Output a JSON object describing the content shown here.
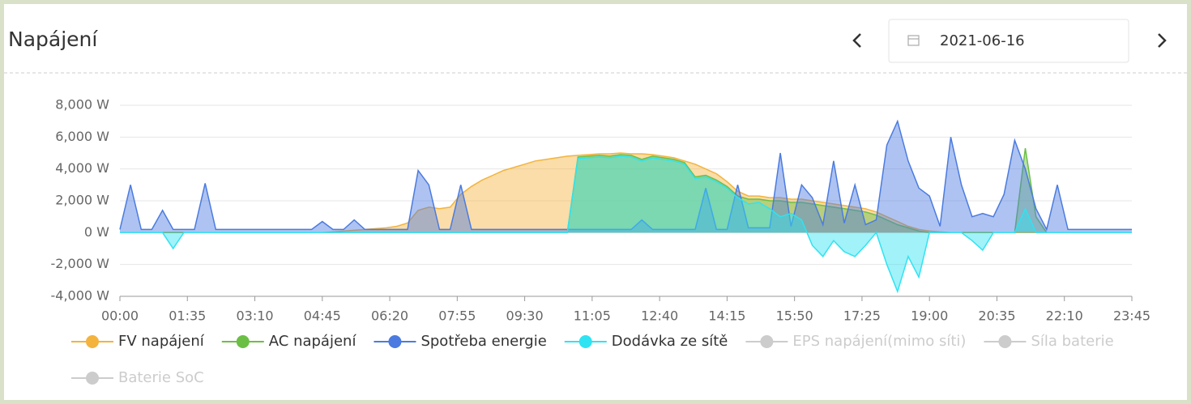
{
  "header": {
    "title": "Napájení",
    "date": "2021-06-16"
  },
  "chart_data": {
    "type": "area",
    "x": [
      0,
      15,
      30,
      45,
      60,
      75,
      90,
      105,
      120,
      135,
      150,
      165,
      180,
      195,
      210,
      225,
      240,
      255,
      270,
      285,
      300,
      315,
      330,
      345,
      360,
      375,
      390,
      405,
      420,
      435,
      450,
      465,
      480,
      495,
      510,
      525,
      540,
      555,
      570,
      585,
      600,
      615,
      630,
      645,
      660,
      675,
      690,
      705,
      720,
      735,
      750,
      765,
      780,
      795,
      810,
      825,
      840,
      855,
      870,
      885,
      900,
      915,
      930,
      945,
      960,
      975,
      990,
      1005,
      1020,
      1035,
      1050,
      1065,
      1080,
      1095,
      1110,
      1125,
      1140,
      1155,
      1170,
      1185,
      1200,
      1215,
      1230,
      1245,
      1260,
      1275,
      1290,
      1305,
      1320,
      1335,
      1350,
      1365,
      1380,
      1395,
      1410,
      1425
    ],
    "xlim": [
      0,
      1425
    ],
    "xticks": [
      {
        "value": 0,
        "label": "00:00"
      },
      {
        "value": 95,
        "label": "01:35"
      },
      {
        "value": 190,
        "label": "03:10"
      },
      {
        "value": 285,
        "label": "04:45"
      },
      {
        "value": 380,
        "label": "06:20"
      },
      {
        "value": 475,
        "label": "07:55"
      },
      {
        "value": 570,
        "label": "09:30"
      },
      {
        "value": 665,
        "label": "11:05"
      },
      {
        "value": 760,
        "label": "12:40"
      },
      {
        "value": 855,
        "label": "14:15"
      },
      {
        "value": 950,
        "label": "15:50"
      },
      {
        "value": 1045,
        "label": "17:25"
      },
      {
        "value": 1140,
        "label": "19:00"
      },
      {
        "value": 1235,
        "label": "20:35"
      },
      {
        "value": 1330,
        "label": "22:10"
      },
      {
        "value": 1425,
        "label": "23:45"
      }
    ],
    "ylim": [
      -4000,
      8000
    ],
    "yticks": [
      {
        "value": 8000,
        "label": "8,000 W"
      },
      {
        "value": 6000,
        "label": "6,000 W"
      },
      {
        "value": 4000,
        "label": "4,000 W"
      },
      {
        "value": 2000,
        "label": "2,000 W"
      },
      {
        "value": 0,
        "label": "0 W"
      },
      {
        "value": -2000,
        "label": "-2,000 W"
      },
      {
        "value": -4000,
        "label": "-4,000 W"
      }
    ],
    "grid": true,
    "series": [
      {
        "name": "FV napájení",
        "color": "#f3b33d",
        "visible": true,
        "values": [
          0,
          0,
          0,
          0,
          0,
          0,
          0,
          0,
          0,
          0,
          0,
          0,
          0,
          0,
          0,
          0,
          0,
          0,
          0,
          0,
          50,
          100,
          150,
          200,
          250,
          300,
          400,
          600,
          1400,
          1600,
          1500,
          1600,
          2400,
          2900,
          3300,
          3600,
          3900,
          4100,
          4300,
          4500,
          4600,
          4700,
          4800,
          4850,
          4900,
          4950,
          4950,
          5000,
          4950,
          4950,
          4900,
          4800,
          4700,
          4500,
          4300,
          4000,
          3700,
          3200,
          2600,
          2300,
          2300,
          2200,
          2200,
          2100,
          2100,
          2000,
          1900,
          1800,
          1700,
          1600,
          1500,
          1300,
          1000,
          700,
          400,
          200,
          100,
          50,
          0,
          0,
          0,
          0,
          0,
          0,
          0,
          0,
          0,
          0,
          0,
          0,
          0,
          0,
          0,
          0,
          0,
          0
        ]
      },
      {
        "name": "AC napájení",
        "color": "#6cbf45",
        "visible": true,
        "values": [
          0,
          0,
          0,
          0,
          0,
          0,
          0,
          0,
          0,
          0,
          0,
          0,
          0,
          0,
          0,
          0,
          0,
          0,
          0,
          0,
          0,
          0,
          0,
          0,
          0,
          0,
          0,
          0,
          0,
          0,
          0,
          0,
          0,
          0,
          0,
          0,
          0,
          0,
          0,
          0,
          0,
          0,
          0,
          4750,
          4800,
          4850,
          4800,
          4900,
          4850,
          4600,
          4800,
          4700,
          4600,
          4400,
          3500,
          3600,
          3300,
          2900,
          2300,
          2100,
          2100,
          2000,
          2000,
          1900,
          1900,
          1800,
          1700,
          1600,
          1500,
          1400,
          1300,
          1100,
          800,
          500,
          300,
          100,
          0,
          0,
          0,
          0,
          0,
          0,
          0,
          0,
          0,
          5300,
          1000,
          0,
          0,
          0,
          0,
          0,
          0,
          0,
          0,
          0
        ]
      },
      {
        "name": "Spotřeba energie",
        "color": "#4b7be0",
        "visible": true,
        "values": [
          200,
          3000,
          200,
          200,
          1400,
          200,
          200,
          200,
          3100,
          200,
          200,
          200,
          200,
          200,
          200,
          200,
          200,
          200,
          200,
          700,
          200,
          200,
          800,
          200,
          200,
          200,
          200,
          200,
          3900,
          3000,
          200,
          200,
          3000,
          200,
          200,
          200,
          200,
          200,
          200,
          200,
          200,
          200,
          200,
          200,
          200,
          200,
          200,
          200,
          200,
          800,
          200,
          200,
          200,
          200,
          200,
          2800,
          200,
          200,
          3000,
          300,
          300,
          300,
          5000,
          400,
          3000,
          2200,
          500,
          4500,
          600,
          3000,
          500,
          800,
          5500,
          7000,
          4500,
          2800,
          2300,
          400,
          6000,
          3000,
          1000,
          1200,
          1000,
          2400,
          5800,
          4000,
          1500,
          200,
          3000,
          200,
          200,
          200,
          200,
          200,
          200,
          200
        ]
      },
      {
        "name": "Dodávka ze sítě",
        "color": "#2fe3f2",
        "visible": true,
        "values": [
          0,
          0,
          0,
          0,
          0,
          -1000,
          0,
          0,
          0,
          0,
          0,
          0,
          0,
          0,
          0,
          0,
          0,
          0,
          0,
          0,
          0,
          0,
          0,
          0,
          0,
          0,
          0,
          0,
          0,
          0,
          0,
          0,
          0,
          0,
          0,
          0,
          0,
          0,
          0,
          0,
          0,
          0,
          0,
          4650,
          4700,
          4750,
          4700,
          4800,
          4750,
          4500,
          4700,
          4600,
          4500,
          4300,
          3400,
          3500,
          3200,
          2800,
          2200,
          1800,
          1900,
          1500,
          1000,
          1200,
          800,
          -800,
          -1500,
          -500,
          -1200,
          -1500,
          -800,
          0,
          -2000,
          -3700,
          -1500,
          -2800,
          0,
          0,
          0,
          0,
          -500,
          -1100,
          0,
          0,
          0,
          1500,
          0,
          0,
          0,
          0,
          0,
          0,
          0,
          0,
          0,
          0
        ]
      },
      {
        "name": "EPS napájení(mimo síti)",
        "color": "#cccccc",
        "visible": false
      },
      {
        "name": "Síla baterie",
        "color": "#cccccc",
        "visible": false
      },
      {
        "name": "Baterie SoC",
        "color": "#cccccc",
        "visible": false
      }
    ]
  }
}
